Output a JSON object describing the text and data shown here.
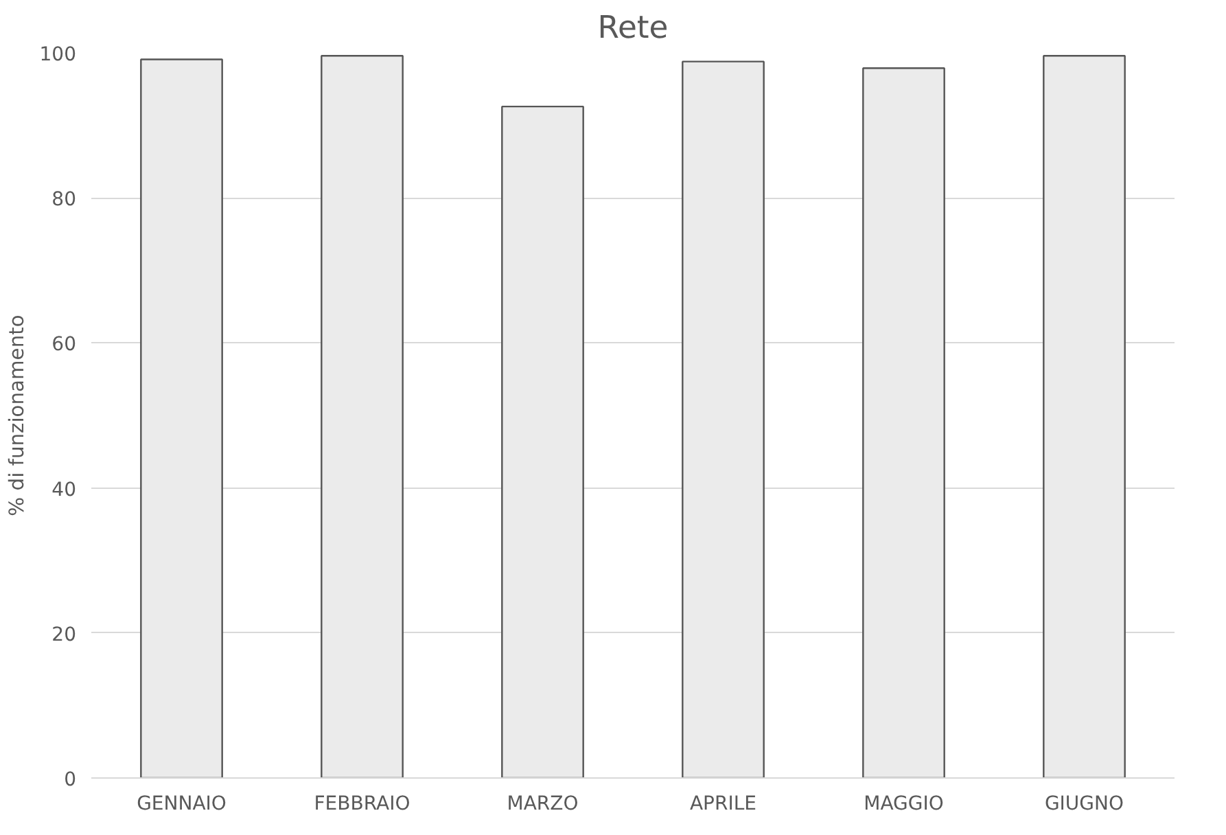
{
  "chart_data": {
    "type": "bar",
    "title": "Rete",
    "ylabel": "% di funzionamento",
    "categories": [
      "GENNAIO",
      "FEBBRAIO",
      "MARZO",
      "APRILE",
      "MAGGIO",
      "GIUGNO"
    ],
    "values": [
      99.1,
      99.6,
      92.6,
      98.8,
      97.9,
      99.6
    ],
    "color": "#ebebeb",
    "ylim": [
      0,
      100
    ],
    "yticks": [
      0,
      20,
      40,
      60,
      80,
      100
    ],
    "grid": "y"
  }
}
